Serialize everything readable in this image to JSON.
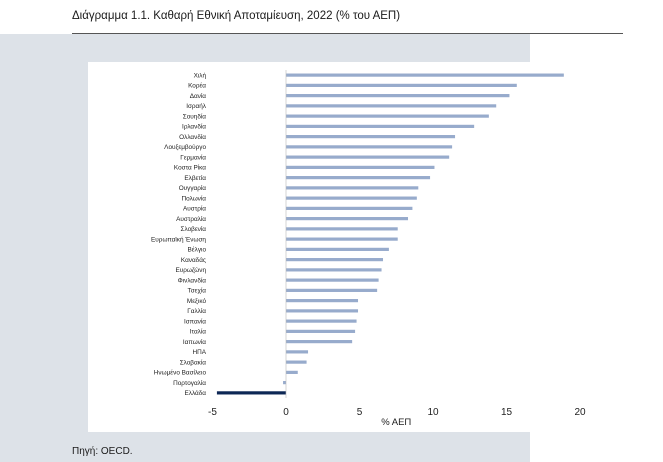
{
  "header": {
    "title": "Διάγραμμα 1.1. Καθαρή Εθνική Αποταμίευση, 2022 (% του ΑΕΠ)"
  },
  "footer": {
    "source": "Πηγή: OECD."
  },
  "colors": {
    "bar": "#97abcc",
    "highlight": "#0d2755",
    "panel": "#dde2e8"
  },
  "chart_data": {
    "type": "bar",
    "orientation": "horizontal",
    "title": "Διάγραμμα 1.1. Καθαρή Εθνική Αποταμίευση, 2022 (% του ΑΕΠ)",
    "xlabel": "% ΑΕΠ",
    "ylabel": "",
    "xlim": [
      -5,
      21
    ],
    "xticks": [
      -5,
      0,
      5,
      10,
      15,
      20
    ],
    "grid": false,
    "highlight_category": "Ελλάδα",
    "categories": [
      "Χιλή",
      "Κορέα",
      "Δανία",
      "Ισραήλ",
      "Σουηδία",
      "Ιρλανδία",
      "Ολλανδία",
      "Λουξεμβούργο",
      "Γερμανία",
      "Κοστα Ρίκα",
      "Ελβετία",
      "Ουγγαρία",
      "Πολωνία",
      "Αυστρία",
      "Αυστραλία",
      "Σλοβενία",
      "Ευρωπαϊκή Ένωση",
      "Βέλγιο",
      "Καναδάς",
      "Ευρωζώνη",
      "Φινλανδία",
      "Τσεχία",
      "Μεξικό",
      "Γαλλία",
      "Ισπανία",
      "Ιταλία",
      "Ιαπωνία",
      "ΗΠΑ",
      "Σλοβακία",
      "Ηνωμένο Βασίλειο",
      "Πορτογαλία",
      "Ελλάδα"
    ],
    "values": [
      18.9,
      15.7,
      15.2,
      14.3,
      13.8,
      12.8,
      11.5,
      11.3,
      11.1,
      10.1,
      9.8,
      9.0,
      8.9,
      8.6,
      8.3,
      7.6,
      7.6,
      7.0,
      6.6,
      6.5,
      6.3,
      6.2,
      4.9,
      4.9,
      4.8,
      4.7,
      4.5,
      1.5,
      1.4,
      0.8,
      -0.2,
      -4.7
    ]
  }
}
